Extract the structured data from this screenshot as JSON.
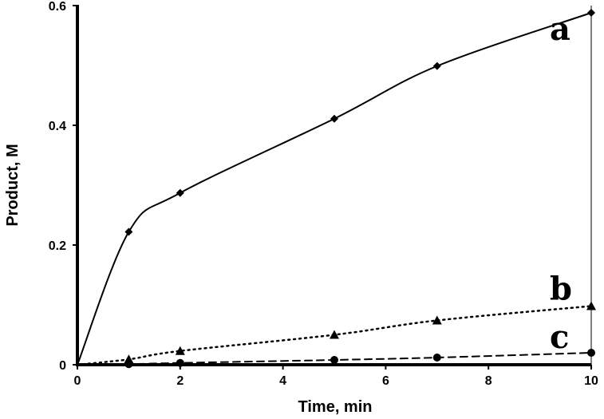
{
  "chart_data": {
    "type": "line",
    "xlabel": "Time, min",
    "ylabel": "Product, M",
    "xlim": [
      0,
      10
    ],
    "ylim": [
      0,
      0.6
    ],
    "x_ticks": [
      "0",
      "2",
      "4",
      "6",
      "8",
      "10"
    ],
    "y_ticks": [
      "0",
      "0.2",
      "0.4",
      "0.6"
    ],
    "grid": false,
    "series": [
      {
        "name": "a",
        "line_style": "solid",
        "marker": "diamond",
        "x": [
          0,
          1,
          2,
          5,
          7,
          10
        ],
        "y": [
          0,
          0.222,
          0.287,
          0.411,
          0.499,
          0.588
        ]
      },
      {
        "name": "b",
        "line_style": "dotted",
        "marker": "triangle",
        "x": [
          0,
          1,
          2,
          5,
          7,
          10
        ],
        "y": [
          0,
          0.009,
          0.023,
          0.05,
          0.074,
          0.098
        ]
      },
      {
        "name": "c",
        "line_style": "dashed",
        "marker": "circle",
        "x": [
          0,
          1,
          2,
          5,
          7,
          10
        ],
        "y": [
          0,
          0.001,
          0.003,
          0.008,
          0.012,
          0.02
        ]
      }
    ]
  }
}
